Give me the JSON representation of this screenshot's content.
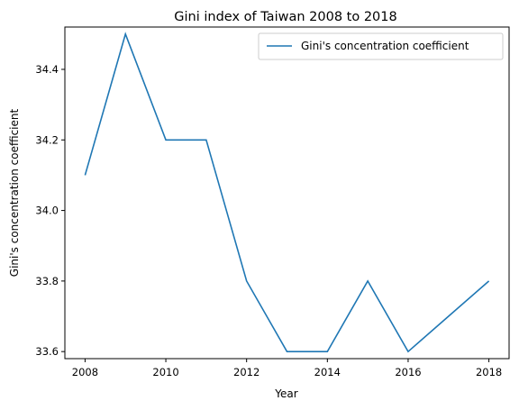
{
  "chart_data": {
    "type": "line",
    "title": "Gini index of Taiwan 2008 to 2018",
    "xlabel": "Year",
    "ylabel": "Gini's concentration coefficient",
    "x": [
      2008,
      2009,
      2010,
      2011,
      2012,
      2013,
      2014,
      2015,
      2016,
      2017,
      2018
    ],
    "series": [
      {
        "name": "Gini's concentration coefficient",
        "color": "#1f77b4",
        "values": [
          34.1,
          34.5,
          34.2,
          34.2,
          33.8,
          33.6,
          33.6,
          33.8,
          33.6,
          33.7,
          33.8
        ]
      }
    ],
    "xlim": [
      2007.5,
      2018.5
    ],
    "ylim": [
      33.58,
      34.52
    ],
    "xticks": [
      "2008",
      "2010",
      "2012",
      "2014",
      "2016",
      "2018"
    ],
    "yticks": [
      "33.6",
      "33.8",
      "34.0",
      "34.2",
      "34.4"
    ],
    "grid": false,
    "legend": "top-right"
  }
}
